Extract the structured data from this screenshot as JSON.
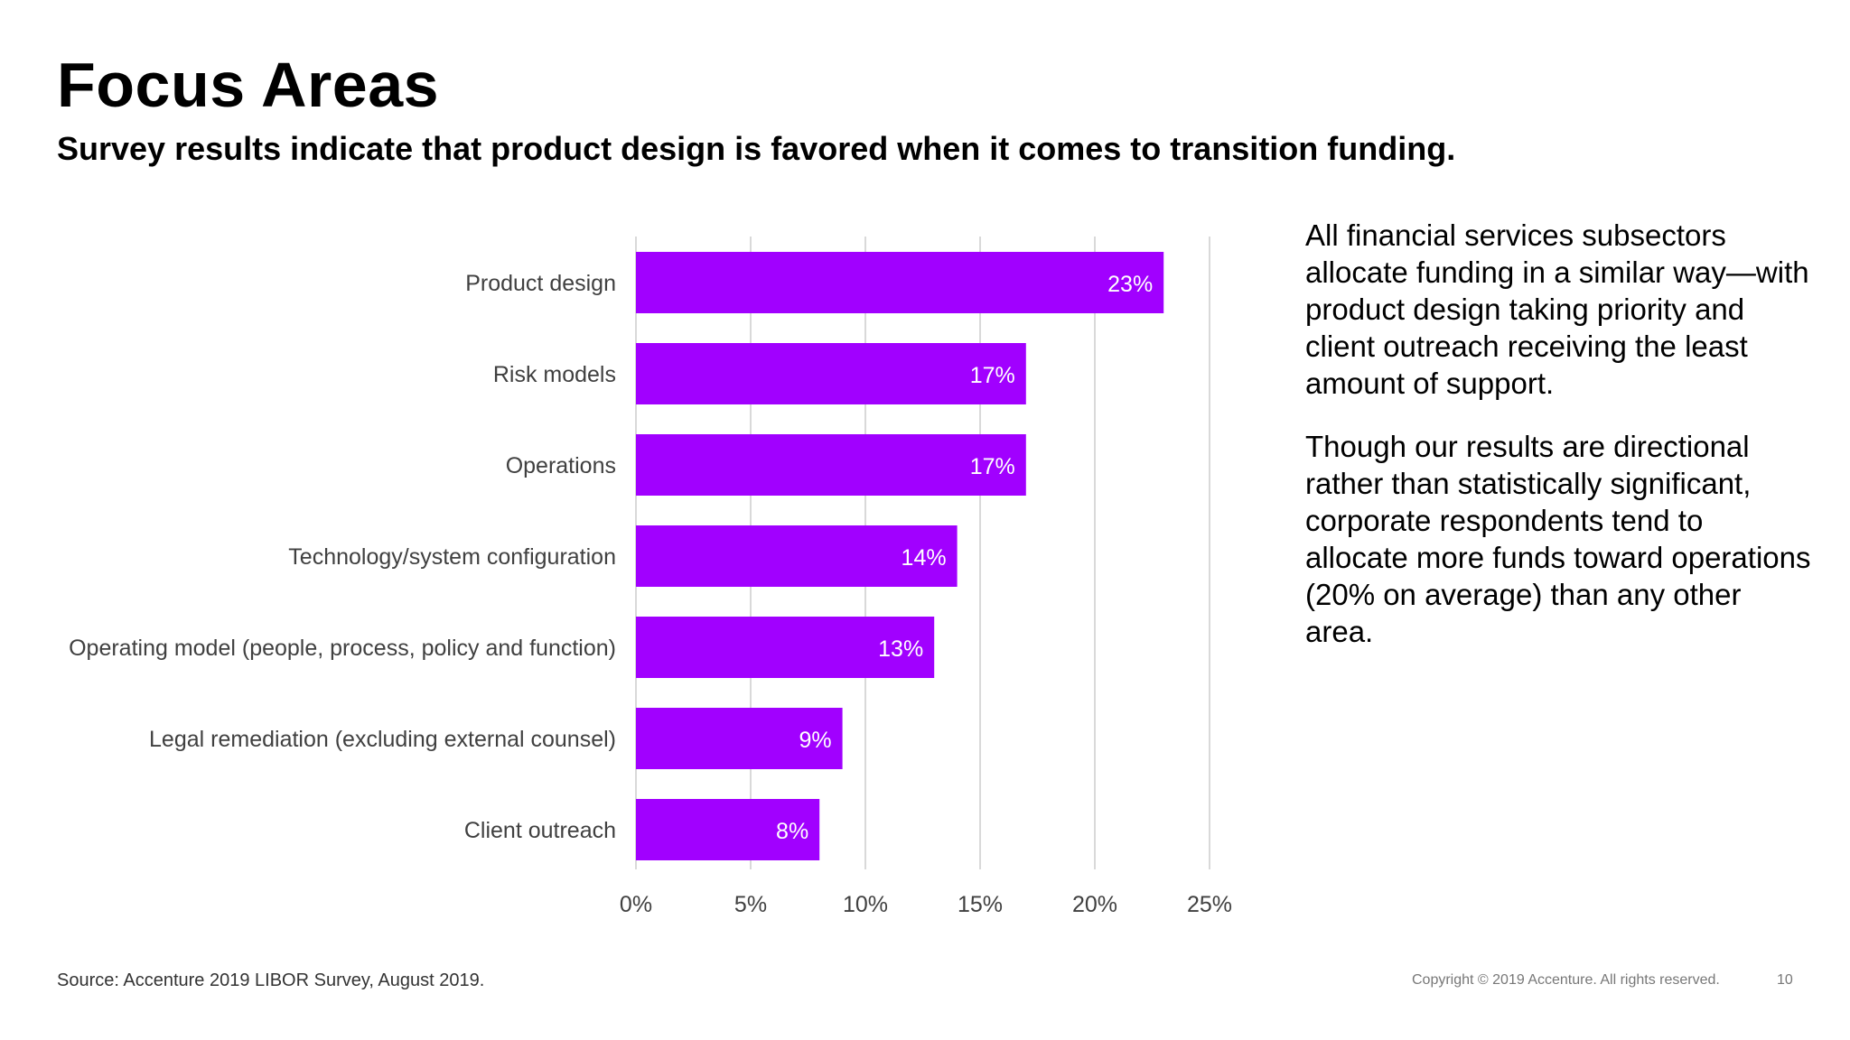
{
  "slide": {
    "title": "Focus Areas",
    "subtitle": "Survey results indicate that product design is favored when it comes to transition funding.",
    "side_paragraphs": [
      "All financial services subsectors allocate funding in a similar way—with product design taking priority and client outreach receiving the least amount of support.",
      "Though our results are directional rather than statistically significant, corporate respondents tend to allocate more funds toward operations (20% on average) than any other area."
    ],
    "source": "Source: Accenture 2019 LIBOR Survey, August 2019.",
    "copyright": "Copyright © 2019 Accenture. All rights reserved.",
    "page_number": "10"
  },
  "chart_data": {
    "type": "bar",
    "orientation": "horizontal",
    "categories": [
      "Product design",
      "Risk models",
      "Operations",
      "Technology/system configuration",
      "Operating model (people, process, policy and function)",
      "Legal remediation (excluding external counsel)",
      "Client outreach"
    ],
    "values": [
      23,
      17,
      17,
      14,
      13,
      9,
      8
    ],
    "data_labels": [
      "23%",
      "17%",
      "17%",
      "14%",
      "13%",
      "9%",
      "8%"
    ],
    "xlim": [
      0,
      25
    ],
    "xticks": [
      "0%",
      "5%",
      "10%",
      "15%",
      "20%",
      "25%"
    ],
    "grid": "vertical",
    "colors": {
      "bar": "#a100ff",
      "grid": "#d9d9d9",
      "category_text": "#404040",
      "bar_label": "#ffffff"
    }
  }
}
